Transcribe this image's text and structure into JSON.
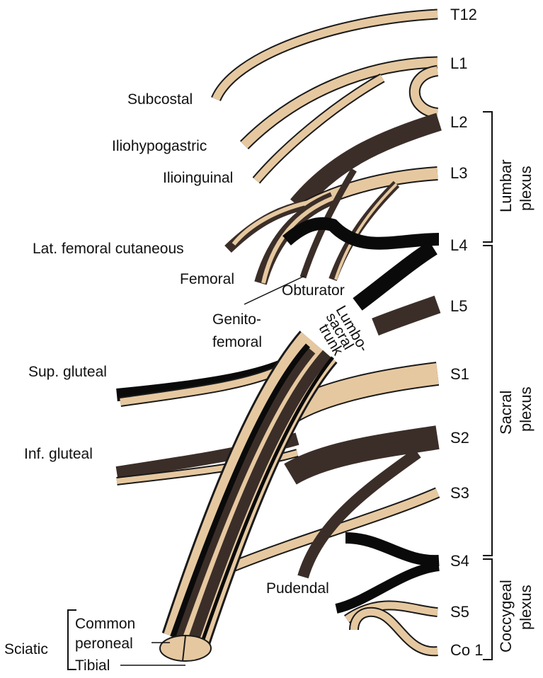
{
  "roots": [
    "T12",
    "L1",
    "L2",
    "L3",
    "L4",
    "L5",
    "S1",
    "S2",
    "S3",
    "S4",
    "S5",
    "Co 1"
  ],
  "nerves": {
    "subcostal": "Subcostal",
    "iliohypogastric": "Iliohypogastric",
    "ilioinguinal": "Ilioinguinal",
    "lat_femoral_cutaneous": "Lat. femoral cutaneous",
    "femoral": "Femoral",
    "obturator": "Obturator",
    "genitofemoral": [
      "Genito-",
      "femoral"
    ],
    "lumbosacral_trunk": [
      "Lumbo-",
      "sacral",
      "trunk"
    ],
    "sup_gluteal": "Sup. gluteal",
    "inf_gluteal": "Inf. gluteal",
    "pudendal": "Pudendal",
    "sciatic": "Sciatic",
    "common_peroneal": [
      "Common",
      "peroneal"
    ],
    "tibial": "Tibial"
  },
  "plexuses": {
    "lumbar": [
      "Lumbar",
      "plexus"
    ],
    "sacral": [
      "Sacral",
      "plexus"
    ],
    "coccygeal": [
      "Coccygeal",
      "plexus"
    ]
  },
  "colors": {
    "tan": "#e6c8a0",
    "dark": "#3b2e28",
    "black": "#0a0a0a",
    "outline": "#1a1a1a"
  }
}
